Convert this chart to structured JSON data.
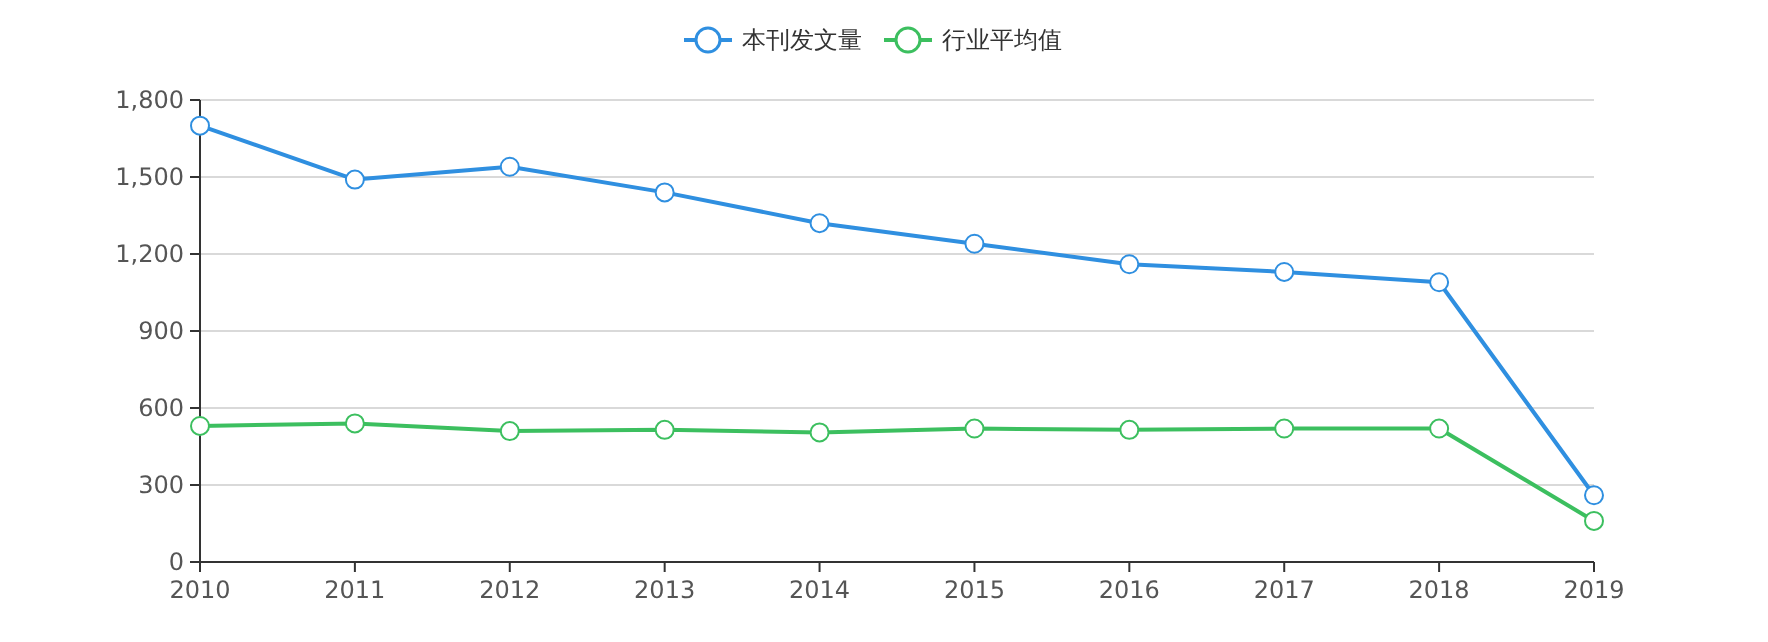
{
  "chart_data": {
    "type": "line",
    "x": [
      2010,
      2011,
      2012,
      2013,
      2014,
      2015,
      2016,
      2017,
      2018,
      2019
    ],
    "xlim": [
      2010,
      2019
    ],
    "xticks": [
      2010,
      2011,
      2012,
      2013,
      2014,
      2015,
      2016,
      2017,
      2018,
      2019
    ],
    "ylim": [
      0,
      1800
    ],
    "yticks": [
      {
        "value": 0,
        "label": "0"
      },
      {
        "value": 300,
        "label": "300"
      },
      {
        "value": 600,
        "label": "600"
      },
      {
        "value": 900,
        "label": "900"
      },
      {
        "value": 1200,
        "label": "1,200"
      },
      {
        "value": 1500,
        "label": "1,500"
      },
      {
        "value": 1800,
        "label": "1,800"
      }
    ],
    "grid": "y",
    "legend": "top",
    "marker": "circle",
    "series": [
      {
        "name": "本刊发文量",
        "color": "#2f8fe0",
        "values": [
          1700,
          1490,
          1540,
          1440,
          1320,
          1240,
          1160,
          1130,
          1090,
          260
        ]
      },
      {
        "name": "行业平均值",
        "color": "#3cbf5f",
        "values": [
          530,
          540,
          510,
          515,
          505,
          520,
          515,
          520,
          520,
          160
        ]
      }
    ]
  }
}
